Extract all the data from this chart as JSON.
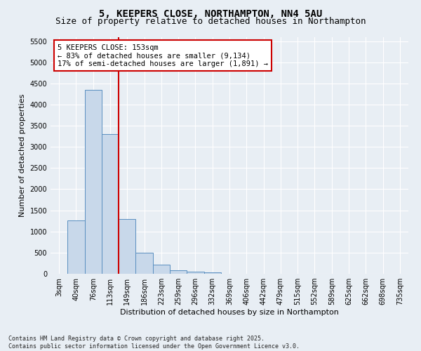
{
  "title": "5, KEEPERS CLOSE, NORTHAMPTON, NN4 5AU",
  "subtitle": "Size of property relative to detached houses in Northampton",
  "xlabel": "Distribution of detached houses by size in Northampton",
  "ylabel": "Number of detached properties",
  "categories": [
    "3sqm",
    "40sqm",
    "76sqm",
    "113sqm",
    "149sqm",
    "186sqm",
    "223sqm",
    "259sqm",
    "296sqm",
    "332sqm",
    "369sqm",
    "406sqm",
    "442sqm",
    "479sqm",
    "515sqm",
    "552sqm",
    "589sqm",
    "625sqm",
    "662sqm",
    "698sqm",
    "735sqm"
  ],
  "bar_values": [
    0,
    1260,
    4350,
    3300,
    1290,
    500,
    215,
    90,
    55,
    35,
    0,
    0,
    0,
    0,
    0,
    0,
    0,
    0,
    0,
    0,
    0
  ],
  "bar_color": "#c8d8ea",
  "bar_edge_color": "#5a8fc0",
  "vline_color": "#cc0000",
  "annotation_text": "5 KEEPERS CLOSE: 153sqm\n← 83% of detached houses are smaller (9,134)\n17% of semi-detached houses are larger (1,891) →",
  "annotation_box_color": "#cc0000",
  "ylim": [
    0,
    5600
  ],
  "yticks": [
    0,
    500,
    1000,
    1500,
    2000,
    2500,
    3000,
    3500,
    4000,
    4500,
    5000,
    5500
  ],
  "background_color": "#e8eef4",
  "grid_color": "#ffffff",
  "footer": "Contains HM Land Registry data © Crown copyright and database right 2025.\nContains public sector information licensed under the Open Government Licence v3.0.",
  "title_fontsize": 10,
  "subtitle_fontsize": 9,
  "ylabel_fontsize": 8,
  "xlabel_fontsize": 8,
  "tick_fontsize": 7,
  "annotation_fontsize": 7.5,
  "footer_fontsize": 6
}
